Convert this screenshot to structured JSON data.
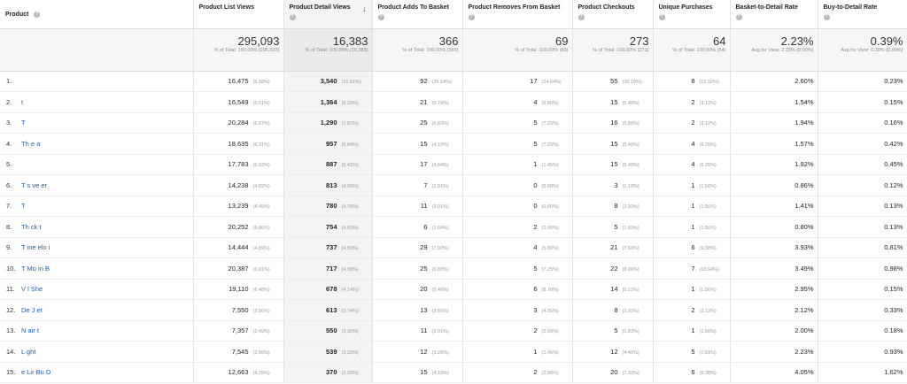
{
  "headers": {
    "product": "Product",
    "list_views": "Product List Views",
    "detail_views": "Product Detail Views",
    "adds": "Product Adds To Basket",
    "removes": "Product Removes From Basket",
    "checkouts": "Product Checkouts",
    "purchases": "Unique Purchases",
    "b2d": "Basket-to-Detail Rate",
    "buy2d": "Buy-to-Detail Rate"
  },
  "totals": {
    "list_views": {
      "value": "295,093",
      "sub": "% of Total: 100.00% (295,093)"
    },
    "detail_views": {
      "value": "16,383",
      "sub": "% of Total: 100.00% (16,383)"
    },
    "adds": {
      "value": "366",
      "sub": "% of Total: 100.00% (366)"
    },
    "removes": {
      "value": "69",
      "sub": "% of Total: 100.00% (69)"
    },
    "checkouts": {
      "value": "273",
      "sub": "% of Total: 100.00% (273)"
    },
    "purchases": {
      "value": "64",
      "sub": "% of Total: 100.00% (64)"
    },
    "b2d": {
      "value": "2.23%",
      "sub": "Avg for View: 2.23% (0.00%)"
    },
    "buy2d": {
      "value": "0.39%",
      "sub": "Avg for View: 0.39% (0.00%)"
    }
  },
  "rows": [
    {
      "idx": "1.",
      "name": "",
      "lv": "16,475",
      "lvp": "(5.58%)",
      "dv": "3,540",
      "dvp": "(21.61%)",
      "ad": "92",
      "adp": "(25.14%)",
      "rm": "17",
      "rmp": "(24.64%)",
      "co": "55",
      "cop": "(20.15%)",
      "up": "8",
      "upp": "(12.50%)",
      "b2d": "2.60%",
      "buy": "0.23%"
    },
    {
      "idx": "2.",
      "name": "t",
      "lv": "16,549",
      "lvp": "(5.61%)",
      "dv": "1,364",
      "dvp": "(8.33%)",
      "ad": "21",
      "adp": "(5.74%)",
      "rm": "4",
      "rmp": "(5.80%)",
      "co": "15",
      "cop": "(5.49%)",
      "up": "2",
      "upp": "(3.12%)",
      "b2d": "1.54%",
      "buy": "0.15%"
    },
    {
      "idx": "3.",
      "name": "T",
      "lv": "20,284",
      "lvp": "(6.87%)",
      "dv": "1,290",
      "dvp": "(7.87%)",
      "ad": "25",
      "adp": "(6.83%)",
      "rm": "5",
      "rmp": "(7.25%)",
      "co": "16",
      "cop": "(5.86%)",
      "up": "2",
      "upp": "(3.12%)",
      "b2d": "1.94%",
      "buy": "0.16%"
    },
    {
      "idx": "4.",
      "name": "Th    e       a",
      "lv": "18,635",
      "lvp": "(6.31%)",
      "dv": "957",
      "dvp": "(5.84%)",
      "ad": "15",
      "adp": "(4.10%)",
      "rm": "5",
      "rmp": "(7.25%)",
      "co": "15",
      "cop": "(5.49%)",
      "up": "4",
      "upp": "(6.25%)",
      "b2d": "1.57%",
      "buy": "0.42%"
    },
    {
      "idx": "5.",
      "name": "",
      "lv": "17,783",
      "lvp": "(6.03%)",
      "dv": "887",
      "dvp": "(5.41%)",
      "ad": "17",
      "adp": "(4.64%)",
      "rm": "1",
      "rmp": "(1.45%)",
      "co": "15",
      "cop": "(5.49%)",
      "up": "4",
      "upp": "(6.25%)",
      "b2d": "1.92%",
      "buy": "0.45%"
    },
    {
      "idx": "6.",
      "name": "T  s  ve  er",
      "lv": "14,238",
      "lvp": "(4.82%)",
      "dv": "813",
      "dvp": "(4.96%)",
      "ad": "7",
      "adp": "(1.91%)",
      "rm": "0",
      "rmp": "(0.00%)",
      "co": "3",
      "cop": "(1.10%)",
      "up": "1",
      "upp": "(1.56%)",
      "b2d": "0.86%",
      "buy": "0.12%"
    },
    {
      "idx": "7.",
      "name": "T",
      "lv": "13,239",
      "lvp": "(4.49%)",
      "dv": "780",
      "dvp": "(4.76%)",
      "ad": "11",
      "adp": "(3.01%)",
      "rm": "0",
      "rmp": "(0.00%)",
      "co": "8",
      "cop": "(2.93%)",
      "up": "1",
      "upp": "(1.56%)",
      "b2d": "1.41%",
      "buy": "0.13%"
    },
    {
      "idx": "8.",
      "name": "Th  ck   t",
      "lv": "20,252",
      "lvp": "(6.86%)",
      "dv": "754",
      "dvp": "(4.60%)",
      "ad": "6",
      "adp": "(1.64%)",
      "rm": "2",
      "rmp": "(2.90%)",
      "co": "5",
      "cop": "(1.83%)",
      "up": "1",
      "upp": "(1.56%)",
      "b2d": "0.80%",
      "buy": "0.13%"
    },
    {
      "idx": "9.",
      "name": "T  ine  elo  i",
      "lv": "14,444",
      "lvp": "(4.89%)",
      "dv": "737",
      "dvp": "(4.50%)",
      "ad": "29",
      "adp": "(7.92%)",
      "rm": "4",
      "rmp": "(5.80%)",
      "co": "21",
      "cop": "(7.69%)",
      "up": "6",
      "upp": "(9.38%)",
      "b2d": "3.93%",
      "buy": "0.81%"
    },
    {
      "idx": "10.",
      "name": "T  Mo  in B",
      "lv": "20,387",
      "lvp": "(6.91%)",
      "dv": "717",
      "dvp": "(4.38%)",
      "ad": "25",
      "adp": "(6.83%)",
      "rm": "5",
      "rmp": "(7.25%)",
      "co": "22",
      "cop": "(8.06%)",
      "up": "7",
      "upp": "(10.94%)",
      "b2d": "3.49%",
      "buy": "0.98%"
    },
    {
      "idx": "11.",
      "name": "V   l  She",
      "lv": "19,110",
      "lvp": "(6.48%)",
      "dv": "678",
      "dvp": "(4.14%)",
      "ad": "20",
      "adp": "(5.46%)",
      "rm": "6",
      "rmp": "(8.70%)",
      "co": "14",
      "cop": "(5.13%)",
      "up": "1",
      "upp": "(1.56%)",
      "b2d": "2.95%",
      "buy": "0.15%"
    },
    {
      "idx": "12.",
      "name": "De  J  et",
      "lv": "7,550",
      "lvp": "(2.56%)",
      "dv": "613",
      "dvp": "(3.74%)",
      "ad": "13",
      "adp": "(3.55%)",
      "rm": "3",
      "rmp": "(4.35%)",
      "co": "8",
      "cop": "(2.93%)",
      "up": "2",
      "upp": "(3.12%)",
      "b2d": "2.12%",
      "buy": "0.33%"
    },
    {
      "idx": "13.",
      "name": "N  air     t",
      "lv": "7,357",
      "lvp": "(2.49%)",
      "dv": "550",
      "dvp": "(3.36%)",
      "ad": "11",
      "adp": "(3.01%)",
      "rm": "2",
      "rmp": "(2.90%)",
      "co": "5",
      "cop": "(1.83%)",
      "up": "1",
      "upp": "(1.56%)",
      "b2d": "2.00%",
      "buy": "0.18%"
    },
    {
      "idx": "14.",
      "name": "L   ght",
      "lv": "7,545",
      "lvp": "(2.56%)",
      "dv": "539",
      "dvp": "(3.29%)",
      "ad": "12",
      "adp": "(3.28%)",
      "rm": "1",
      "rmp": "(1.45%)",
      "co": "12",
      "cop": "(4.40%)",
      "up": "5",
      "upp": "(7.81%)",
      "b2d": "2.23%",
      "buy": "0.93%"
    },
    {
      "idx": "15.",
      "name": "e Lir  Bu   D",
      "lv": "12,663",
      "lvp": "(4.29%)",
      "dv": "370",
      "dvp": "(2.26%)",
      "ad": "15",
      "adp": "(4.10%)",
      "rm": "2",
      "rmp": "(2.90%)",
      "co": "20",
      "cop": "(7.33%)",
      "up": "6",
      "upp": "(9.38%)",
      "b2d": "4.05%",
      "buy": "1.62%"
    }
  ],
  "help_icon": "?",
  "sort_icon": "↓",
  "colors": {
    "link": "#1a5fb4",
    "sorted_column_bg": "#f3f3f3",
    "totals_bg": "#f6f6f6"
  }
}
